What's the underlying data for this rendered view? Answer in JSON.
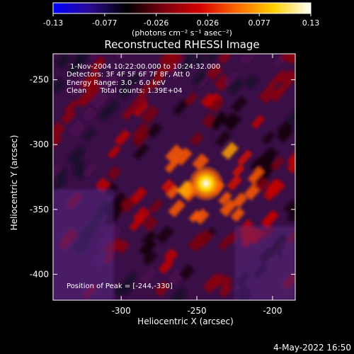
{
  "colorbar": {
    "ticks": [
      "-0.13",
      "-0.077",
      "-0.026",
      "0.026",
      "0.077",
      "0.13"
    ],
    "unit_label": "(photons cm⁻² s⁻¹ asec⁻²)",
    "colors": [
      "#0000ff",
      "#2a0a8f",
      "#000000",
      "#7a0010",
      "#d40000",
      "#ff6a00",
      "#ffd000",
      "#ffffff"
    ]
  },
  "image": {
    "title": "Reconstructed RHESSI Image",
    "info_lines": [
      "1-Nov-2004 10:22:00.000 to 10:24:32.000",
      "Detectors: 3F 4F 5F 6F 7F 8F, Att 0",
      "Energy Range: 3.0 - 6.0 keV",
      "Clean      Total counts: 1.39E+04"
    ],
    "peak_label": "Position of Peak = [-244,-330]",
    "peak": {
      "x": -244,
      "y": -330
    },
    "x_range": [
      -345,
      -185
    ],
    "y_range": [
      -420,
      -230
    ]
  },
  "axes": {
    "x_label": "Heliocentric X (arcsec)",
    "y_label": "Heliocentric Y (arcsec)",
    "x_ticks": [
      "-300",
      "-250",
      "-200"
    ],
    "x_tick_values": [
      -300,
      -250,
      -200
    ],
    "y_ticks": [
      "-250",
      "-300",
      "-350",
      "-400"
    ],
    "y_tick_values": [
      -250,
      -300,
      -350,
      -400
    ]
  },
  "footer": {
    "timestamp": "4-May-2022 16:50"
  }
}
